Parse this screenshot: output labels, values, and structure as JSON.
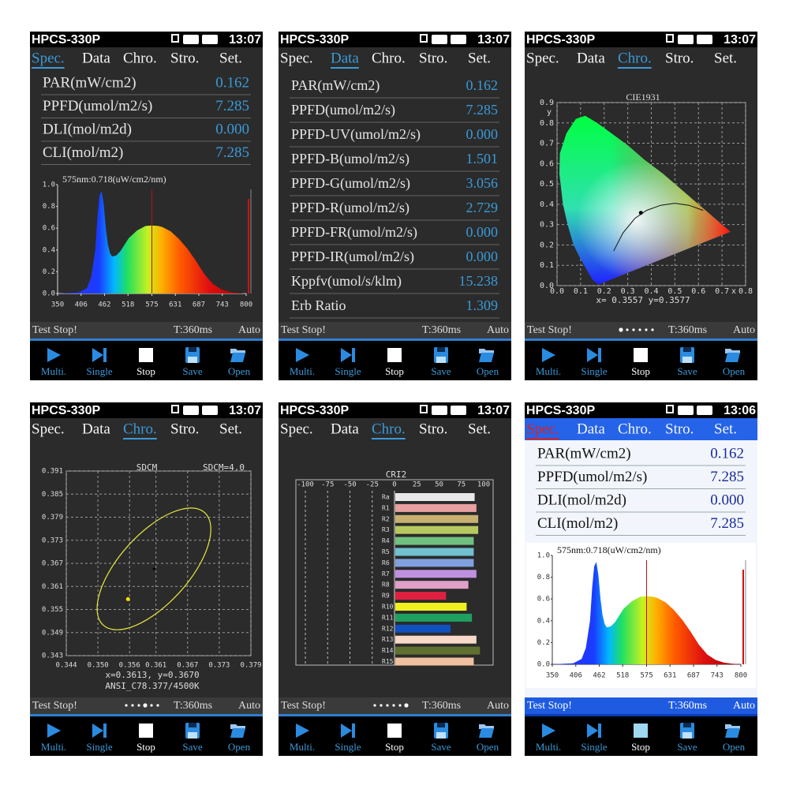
{
  "screens": [
    {
      "model": "HPCS-330P",
      "time": "13:07",
      "theme": "dark",
      "tabs": [
        "Spec.",
        "Data",
        "Chro.",
        "Stro.",
        "Set."
      ],
      "active_tab": 0,
      "kind": "readings",
      "rows": [
        [
          "PAR(mW/cm2)",
          "0.162"
        ],
        [
          "PPFD(umol/m2/s)",
          "7.285"
        ],
        [
          "DLI(mol/m2d)",
          "0.000"
        ],
        [
          "CLI(mol/m2)",
          "7.285"
        ]
      ],
      "spectrum": {
        "marker_label": "575nm:0.718(uW/cm2/nm)",
        "marker_x": 575,
        "xlim": [
          350,
          800
        ],
        "ylim": [
          0,
          1
        ],
        "xticks": [
          350,
          406,
          462,
          518,
          575,
          631,
          687,
          743,
          800
        ],
        "yticks": [
          {
            "value": 0,
            "label": "0.0"
          },
          0.2,
          0.4,
          0.6,
          0.8,
          {
            "value": 1,
            "label": "1.0"
          }
        ],
        "x": [
          350,
          400,
          420,
          430,
          440,
          445,
          450,
          455,
          460,
          465,
          470,
          475,
          480,
          490,
          500,
          510,
          520,
          540,
          560,
          575,
          590,
          600,
          620,
          640,
          660,
          680,
          700,
          720,
          740,
          760,
          780,
          800
        ],
        "y": [
          0,
          0.01,
          0.05,
          0.15,
          0.4,
          0.7,
          0.9,
          0.94,
          0.82,
          0.6,
          0.45,
          0.37,
          0.34,
          0.35,
          0.39,
          0.45,
          0.51,
          0.58,
          0.62,
          0.625,
          0.62,
          0.61,
          0.57,
          0.5,
          0.41,
          0.3,
          0.18,
          0.09,
          0.04,
          0.015,
          0.005,
          0
        ]
      },
      "status": [
        "Test Stop!",
        "T:360ms",
        "Auto"
      ],
      "buttons": [
        "Multi.",
        "Single",
        "Stop",
        "Save",
        "Open"
      ]
    },
    {
      "model": "HPCS-330P",
      "time": "13:07",
      "theme": "dark",
      "tabs": [
        "Spec.",
        "Data",
        "Chro.",
        "Stro.",
        "Set."
      ],
      "active_tab": 1,
      "kind": "data",
      "rows": [
        [
          "PAR(mW/cm2)",
          "0.162"
        ],
        [
          "PPFD(umol/m2/s)",
          "7.285"
        ],
        [
          "PPFD-UV(umol/m2/s)",
          "0.000"
        ],
        [
          "PPFD-B(umol/m2/s)",
          "1.501"
        ],
        [
          "PPFD-G(umol/m2/s)",
          "3.056"
        ],
        [
          "PPFD-R(umol/m2/s)",
          "2.729"
        ],
        [
          "PPFD-FR(umol/m2/s)",
          "0.000"
        ],
        [
          "PPFD-IR(umol/m2/s)",
          "0.000"
        ],
        [
          "Kppfv(umol/s/klm)",
          "15.238"
        ],
        [
          "Erb Ratio",
          "1.309"
        ]
      ],
      "status": [
        "Test Stop!",
        "T:360ms",
        "Auto"
      ],
      "buttons": [
        "Multi.",
        "Single",
        "Stop",
        "Save",
        "Open"
      ]
    },
    {
      "model": "HPCS-330P",
      "time": "13:07",
      "theme": "dark",
      "tabs": [
        "Spec.",
        "Data",
        "Chro.",
        "Stro.",
        "Set."
      ],
      "active_tab": 2,
      "kind": "cie",
      "cie": {
        "title": "CIE1931",
        "xlim": [
          0,
          0.8
        ],
        "ylim": [
          0,
          0.9
        ],
        "xticks": [
          {
            "value": 0,
            "label": "0.0"
          },
          0.1,
          0.2,
          0.3,
          0.4,
          0.5,
          0.6,
          0.7,
          0.8
        ],
        "yticks": [
          {
            "value": 0,
            "label": "0.0"
          },
          0.1,
          0.2,
          0.3,
          0.4,
          0.5,
          0.6,
          0.7,
          0.8,
          0.9
        ],
        "x_label": "x",
        "y_label": "y",
        "point": {
          "x": 0.3557,
          "y": 0.3577
        },
        "readout": "x= 0.3557  y=0.3577"
      },
      "page_dots": 6,
      "page_dot": 0,
      "status": [
        "Test Stop!",
        "T:360ms",
        "Auto"
      ],
      "buttons": [
        "Multi.",
        "Single",
        "Stop",
        "Save",
        "Open"
      ]
    },
    {
      "model": "HPCS-330P",
      "time": "13:07",
      "theme": "dark",
      "tabs": [
        "Spec.",
        "Data",
        "Chro.",
        "Stro.",
        "Set."
      ],
      "active_tab": 2,
      "kind": "sdcm",
      "sdcm": {
        "title": "SDCM",
        "level": "SDCM=4.0",
        "xlim": [
          0.344,
          0.379
        ],
        "ylim": [
          0.343,
          0.391
        ],
        "xticks": [
          0.344,
          {
            "value": 0.35,
            "label": "0.350"
          },
          0.356,
          0.361,
          0.367,
          0.373,
          0.379
        ],
        "yticks": [
          0.343,
          0.349,
          0.355,
          0.361,
          0.367,
          0.373,
          0.379,
          0.385,
          0.391
        ],
        "point": {
          "x": 0.3557,
          "y": 0.3577
        },
        "readout": "x=0.3613, y=0.3670",
        "standard": "ANSI_C78.377/4500K"
      },
      "page_dots": 6,
      "page_dot": 3,
      "status": [
        "Test Stop!",
        "T:360ms",
        "Auto"
      ],
      "buttons": [
        "Multi.",
        "Single",
        "Stop",
        "Save",
        "Open"
      ]
    },
    {
      "model": "HPCS-330P",
      "time": "13:07",
      "theme": "dark",
      "tabs": [
        "Spec.",
        "Data",
        "Chro.",
        "Stro.",
        "Set."
      ],
      "active_tab": 2,
      "kind": "cri",
      "cri": {
        "title": "CRI2",
        "xlim": [
          -100,
          100
        ],
        "xticks": [
          -100,
          -75,
          -50,
          -25,
          0,
          25,
          50,
          75,
          100
        ],
        "categories": [
          "Ra",
          "R1",
          "R2",
          "R3",
          "R4",
          "R5",
          "R6",
          "R7",
          "R8",
          "R9",
          "R10",
          "R11",
          "R12",
          "R13",
          "R14",
          "R15"
        ],
        "values": [
          89,
          91,
          93,
          93,
          88,
          88,
          88,
          91,
          82,
          57,
          80,
          86,
          62,
          91,
          95,
          88
        ],
        "colors": [
          "#e8e8e8",
          "#e8a0a0",
          "#c8b070",
          "#b8c860",
          "#70c080",
          "#70c0d0",
          "#80a0e0",
          "#c090e0",
          "#e0a0c8",
          "#e02040",
          "#f0f020",
          "#20a060",
          "#1050c0",
          "#f8d8c8",
          "#607030",
          "#f0c0a0"
        ]
      },
      "page_dots": 6,
      "page_dot": 5,
      "status": [
        "Test Stop!",
        "T:360ms",
        "Auto"
      ],
      "buttons": [
        "Multi.",
        "Single",
        "Stop",
        "Save",
        "Open"
      ]
    },
    {
      "model": "HPCS-330P",
      "time": "13:06",
      "theme": "light",
      "tabs": [
        "Spec.",
        "Data",
        "Chro.",
        "Stro.",
        "Set."
      ],
      "active_tab": 0,
      "kind": "readings",
      "rows": [
        [
          "PAR(mW/cm2)",
          "0.162"
        ],
        [
          "PPFD(umol/m2/s)",
          "7.285"
        ],
        [
          "DLI(mol/m2d)",
          "0.000"
        ],
        [
          "CLI(mol/m2)",
          "7.285"
        ]
      ],
      "spectrum": {
        "marker_label": "575nm:0.718(uW/cm2/nm)",
        "marker_x": 575,
        "xlim": [
          350,
          800
        ],
        "ylim": [
          0,
          1
        ],
        "xticks": [
          350,
          406,
          462,
          518,
          575,
          631,
          687,
          743,
          800
        ],
        "yticks": [
          {
            "value": 0,
            "label": "0.0"
          },
          0.2,
          0.4,
          0.6,
          0.8,
          {
            "value": 1,
            "label": "1.0"
          }
        ],
        "x": [
          350,
          400,
          420,
          430,
          440,
          445,
          450,
          455,
          460,
          465,
          470,
          475,
          480,
          490,
          500,
          510,
          520,
          540,
          560,
          575,
          590,
          600,
          620,
          640,
          660,
          680,
          700,
          720,
          740,
          760,
          780,
          800
        ],
        "y": [
          0,
          0.01,
          0.05,
          0.15,
          0.4,
          0.7,
          0.9,
          0.94,
          0.82,
          0.6,
          0.45,
          0.37,
          0.34,
          0.35,
          0.39,
          0.45,
          0.51,
          0.58,
          0.62,
          0.625,
          0.62,
          0.61,
          0.57,
          0.5,
          0.41,
          0.3,
          0.18,
          0.09,
          0.04,
          0.015,
          0.005,
          0
        ]
      },
      "status": [
        "Test Stop!",
        "T:360ms",
        "Auto"
      ],
      "buttons": [
        "Multi.",
        "Single",
        "Stop",
        "Save",
        "Open"
      ]
    }
  ]
}
